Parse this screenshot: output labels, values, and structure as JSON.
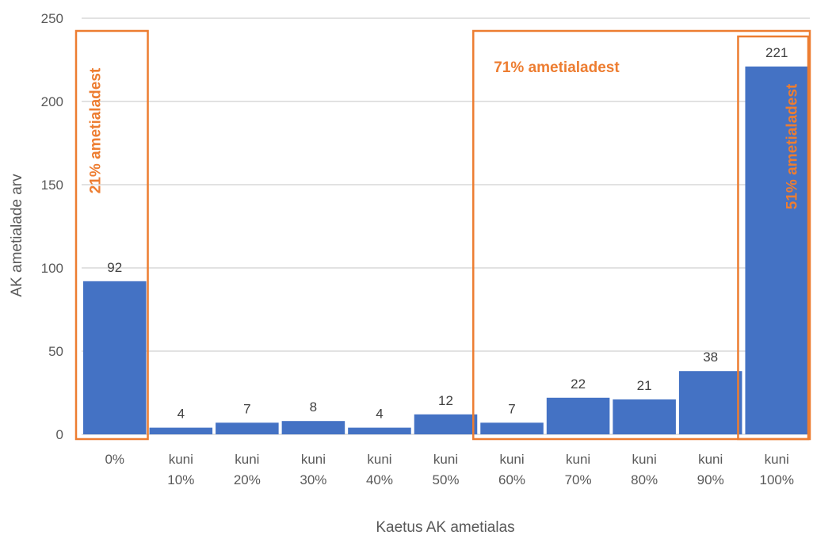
{
  "chart_data": {
    "type": "bar",
    "categories": [
      [
        "0%"
      ],
      [
        "kuni",
        "10%"
      ],
      [
        "kuni",
        "20%"
      ],
      [
        "kuni",
        "30%"
      ],
      [
        "kuni",
        "40%"
      ],
      [
        "kuni",
        "50%"
      ],
      [
        "kuni",
        "60%"
      ],
      [
        "kuni",
        "70%"
      ],
      [
        "kuni",
        "80%"
      ],
      [
        "kuni",
        "90%"
      ],
      [
        "kuni",
        "100%"
      ]
    ],
    "values": [
      92,
      4,
      7,
      8,
      4,
      12,
      7,
      22,
      21,
      38,
      221
    ],
    "xlabel": "Kaetus AK ametialas",
    "ylabel": "AK ametialade arv",
    "ylim": [
      0,
      250
    ],
    "yticks": [
      0,
      50,
      100,
      150,
      200,
      250
    ],
    "grid": true,
    "colors": {
      "bar": "#4472C4",
      "annotation": "#ED7D31"
    },
    "annotations": [
      {
        "text": "21% ametialadest",
        "from_category": 0,
        "to_category": 0,
        "orientation": "vertical"
      },
      {
        "text": "71% ametialadest",
        "from_category": 6,
        "to_category": 10,
        "orientation": "horizontal"
      },
      {
        "text": "51% ametialadest",
        "from_category": 10,
        "to_category": 10,
        "orientation": "vertical"
      }
    ]
  }
}
